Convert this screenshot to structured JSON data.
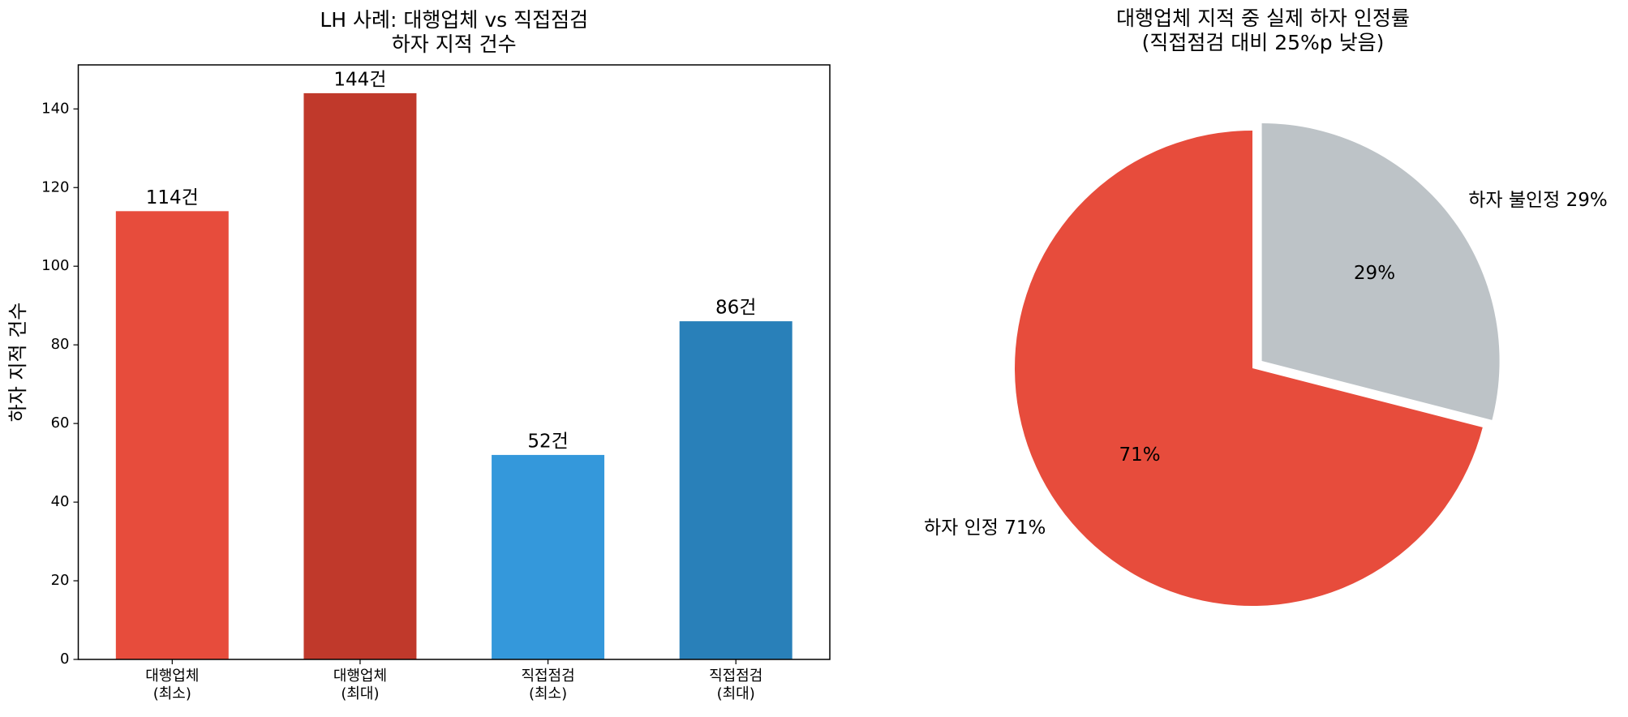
{
  "chart_data": [
    {
      "type": "bar",
      "title": "LH 사례: 대행업체 vs 직접점검\n하자 지적 건수",
      "ylabel": "하자 지적 건수",
      "categories": [
        "대행업체\n(최소)",
        "대행업체\n(최대)",
        "직접점검\n(최소)",
        "직접점검\n(최대)"
      ],
      "values": [
        114,
        144,
        52,
        86
      ],
      "value_labels": [
        "114건",
        "144건",
        "52건",
        "86건"
      ],
      "colors": [
        "#e74c3c",
        "#c0392b",
        "#3498db",
        "#2980b9"
      ],
      "ylim": [
        0,
        151.2
      ],
      "yticks": [
        0,
        20,
        40,
        60,
        80,
        100,
        120,
        140
      ]
    },
    {
      "type": "pie",
      "title": "대행업체 지적 중 실제 하자 인정률\n(직접점검 대비 25%p 낮음)",
      "labels": [
        "하자 인정 71%",
        "하자 불인정 29%"
      ],
      "values": [
        71,
        29
      ],
      "value_labels": [
        "71%",
        "29%"
      ],
      "colors": [
        "#e74c3c",
        "#bdc3c7"
      ],
      "explode": [
        0,
        0.05
      ]
    }
  ]
}
